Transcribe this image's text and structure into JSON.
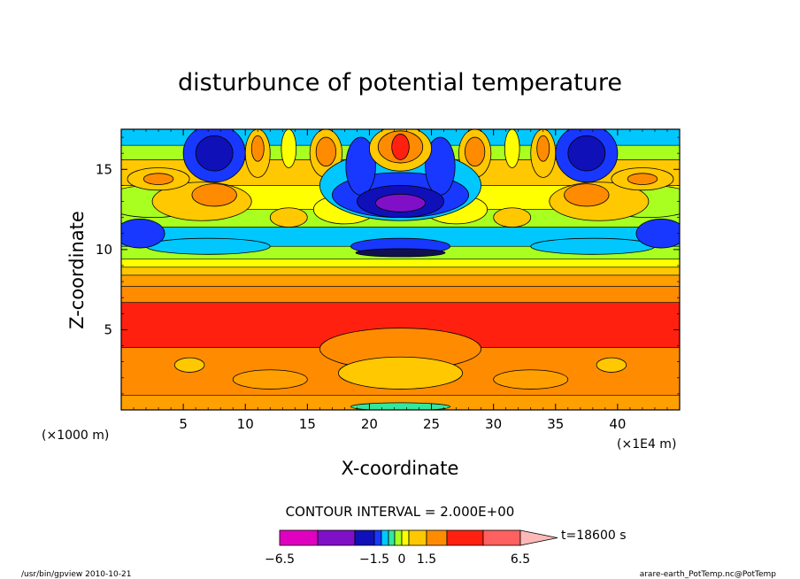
{
  "chart_data": {
    "type": "heatmap",
    "title": "disturbunce of potential temperature",
    "xlabel": "X-coordinate",
    "ylabel": "Z-coordinate",
    "x_unit": "(×1000 m)",
    "x_extra_unit": "(×1E4 m)",
    "xlim": [
      0,
      45
    ],
    "ylim": [
      0,
      17.5
    ],
    "x_ticks": [
      "5",
      "10",
      "15",
      "20",
      "25",
      "30",
      "35",
      "40"
    ],
    "y_ticks": [
      "5",
      "10",
      "15"
    ],
    "contour_interval": "CONTOUR INTERVAL = 2.000E+00",
    "time_label": "t=18600 s",
    "colorbar_ticks": [
      "−6.5",
      "−1.5",
      "0",
      "1.5",
      "6.5"
    ],
    "colorbar_colors": [
      "#e000c0",
      "#8010c8",
      "#1010b8",
      "#1838ff",
      "#00c8ff",
      "#30e8a0",
      "#a8ff20",
      "#ffff00",
      "#ffc800",
      "#ff8c00",
      "#ff2010",
      "#ff6060",
      "#ffb8b8"
    ],
    "bands": [
      {
        "z": [
          0.0,
          0.9
        ],
        "color": "#ffa000"
      },
      {
        "z": [
          0.9,
          3.9
        ],
        "color": "#ff8c00"
      },
      {
        "z": [
          3.9,
          6.7
        ],
        "color": "#ff2010"
      },
      {
        "z": [
          6.7,
          7.7
        ],
        "color": "#ff8c00"
      },
      {
        "z": [
          7.7,
          8.4
        ],
        "color": "#ffa000"
      },
      {
        "z": [
          8.4,
          8.9
        ],
        "color": "#ffc800"
      },
      {
        "z": [
          8.9,
          9.4
        ],
        "color": "#ffff00"
      },
      {
        "z": [
          9.4,
          10.2
        ],
        "color": "#a8ff20"
      },
      {
        "z": [
          10.2,
          11.4
        ],
        "color": "#00c8ff"
      },
      {
        "z": [
          11.4,
          12.5
        ],
        "color": "#a8ff20"
      },
      {
        "z": [
          12.5,
          14.0
        ],
        "color": "#ffff00"
      },
      {
        "z": [
          14.0,
          15.6
        ],
        "color": "#ffc800"
      },
      {
        "z": [
          15.6,
          16.5
        ],
        "color": "#a8ff20"
      },
      {
        "z": [
          16.5,
          17.5
        ],
        "color": "#00c8ff"
      }
    ],
    "blobs": [
      {
        "x": 22.5,
        "z": 3.8,
        "rx": 6.5,
        "rz": 1.3,
        "color": "#ff8c00"
      },
      {
        "x": 22.5,
        "z": 2.3,
        "rx": 5.0,
        "rz": 1.0,
        "color": "#ffc800"
      },
      {
        "x": 5.5,
        "z": 2.8,
        "rx": 1.2,
        "rz": 0.45,
        "color": "#ffc800"
      },
      {
        "x": 39.5,
        "z": 2.8,
        "rx": 1.2,
        "rz": 0.45,
        "color": "#ffc800"
      },
      {
        "x": 12.0,
        "z": 1.9,
        "rx": 3.0,
        "rz": 0.6,
        "color": "#ffa000"
      },
      {
        "x": 33.0,
        "z": 1.9,
        "rx": 3.0,
        "rz": 0.6,
        "color": "#ffa000"
      },
      {
        "x": 22.5,
        "z": 10.2,
        "rx": 4.0,
        "rz": 0.5,
        "color": "#1838ff"
      },
      {
        "x": 22.5,
        "z": 9.8,
        "rx": 3.6,
        "rz": 0.25,
        "color": "#101050"
      },
      {
        "x": 7.0,
        "z": 10.2,
        "rx": 5.0,
        "rz": 0.5,
        "color": "#00c8ff"
      },
      {
        "x": 38.0,
        "z": 10.2,
        "rx": 5.0,
        "rz": 0.5,
        "color": "#00c8ff"
      },
      {
        "x": 1.5,
        "z": 11.0,
        "rx": 2.0,
        "rz": 0.9,
        "color": "#1838ff"
      },
      {
        "x": 43.5,
        "z": 11.0,
        "rx": 2.0,
        "rz": 0.9,
        "color": "#1838ff"
      },
      {
        "x": 2.5,
        "z": 13.0,
        "rx": 4.0,
        "rz": 1.0,
        "color": "#a8ff20"
      },
      {
        "x": 42.5,
        "z": 13.0,
        "rx": 4.0,
        "rz": 1.0,
        "color": "#a8ff20"
      },
      {
        "x": 6.5,
        "z": 13.0,
        "rx": 4.0,
        "rz": 1.2,
        "color": "#ffc800"
      },
      {
        "x": 38.5,
        "z": 13.0,
        "rx": 4.0,
        "rz": 1.2,
        "color": "#ffc800"
      },
      {
        "x": 7.5,
        "z": 13.4,
        "rx": 1.8,
        "rz": 0.7,
        "color": "#ff8c00"
      },
      {
        "x": 37.5,
        "z": 13.4,
        "rx": 1.8,
        "rz": 0.7,
        "color": "#ff8c00"
      },
      {
        "x": 3.0,
        "z": 14.4,
        "rx": 2.5,
        "rz": 0.7,
        "color": "#ffc800"
      },
      {
        "x": 42.0,
        "z": 14.4,
        "rx": 2.5,
        "rz": 0.7,
        "color": "#ffc800"
      },
      {
        "x": 3.0,
        "z": 14.4,
        "rx": 1.2,
        "rz": 0.35,
        "color": "#ff8c00"
      },
      {
        "x": 42.0,
        "z": 14.4,
        "rx": 1.2,
        "rz": 0.35,
        "color": "#ff8c00"
      },
      {
        "x": 13.5,
        "z": 12.0,
        "rx": 1.5,
        "rz": 0.6,
        "color": "#ffc800"
      },
      {
        "x": 31.5,
        "z": 12.0,
        "rx": 1.5,
        "rz": 0.6,
        "color": "#ffc800"
      },
      {
        "x": 18.0,
        "z": 12.5,
        "rx": 2.5,
        "rz": 0.9,
        "color": "#ffff00"
      },
      {
        "x": 27.0,
        "z": 12.5,
        "rx": 2.5,
        "rz": 0.9,
        "color": "#ffff00"
      },
      {
        "x": 7.5,
        "z": 16.0,
        "rx": 2.5,
        "rz": 1.8,
        "color": "#1838ff"
      },
      {
        "x": 37.5,
        "z": 16.0,
        "rx": 2.5,
        "rz": 1.8,
        "color": "#1838ff"
      },
      {
        "x": 7.5,
        "z": 16.0,
        "rx": 1.5,
        "rz": 1.1,
        "color": "#1010b8"
      },
      {
        "x": 37.5,
        "z": 16.0,
        "rx": 1.5,
        "rz": 1.1,
        "color": "#1010b8"
      },
      {
        "x": 11.0,
        "z": 16.0,
        "rx": 1.0,
        "rz": 1.5,
        "color": "#ffc800"
      },
      {
        "x": 34.0,
        "z": 16.0,
        "rx": 1.0,
        "rz": 1.5,
        "color": "#ffc800"
      },
      {
        "x": 11.0,
        "z": 16.3,
        "rx": 0.5,
        "rz": 0.8,
        "color": "#ff8c00"
      },
      {
        "x": 34.0,
        "z": 16.3,
        "rx": 0.5,
        "rz": 0.8,
        "color": "#ff8c00"
      },
      {
        "x": 13.5,
        "z": 16.3,
        "rx": 0.6,
        "rz": 1.2,
        "color": "#ffff00"
      },
      {
        "x": 31.5,
        "z": 16.3,
        "rx": 0.6,
        "rz": 1.2,
        "color": "#ffff00"
      },
      {
        "x": 16.5,
        "z": 16.0,
        "rx": 1.3,
        "rz": 1.5,
        "color": "#ffc800"
      },
      {
        "x": 28.5,
        "z": 16.0,
        "rx": 1.3,
        "rz": 1.5,
        "color": "#ffc800"
      },
      {
        "x": 16.5,
        "z": 16.1,
        "rx": 0.8,
        "rz": 0.9,
        "color": "#ff8c00"
      },
      {
        "x": 28.5,
        "z": 16.1,
        "rx": 0.8,
        "rz": 0.9,
        "color": "#ff8c00"
      },
      {
        "x": 22.5,
        "z": 14.0,
        "rx": 6.5,
        "rz": 2.2,
        "color": "#00c8ff"
      },
      {
        "x": 22.5,
        "z": 13.4,
        "rx": 5.5,
        "rz": 1.4,
        "color": "#1838ff"
      },
      {
        "x": 19.3,
        "z": 15.2,
        "rx": 1.2,
        "rz": 1.8,
        "color": "#1838ff"
      },
      {
        "x": 25.7,
        "z": 15.2,
        "rx": 1.2,
        "rz": 1.8,
        "color": "#1838ff"
      },
      {
        "x": 22.5,
        "z": 13.0,
        "rx": 3.5,
        "rz": 1.0,
        "color": "#1010b8"
      },
      {
        "x": 22.5,
        "z": 12.9,
        "rx": 2.0,
        "rz": 0.55,
        "color": "#8010c8"
      },
      {
        "x": 22.5,
        "z": 16.3,
        "rx": 2.5,
        "rz": 1.4,
        "color": "#ffc800"
      },
      {
        "x": 22.5,
        "z": 16.4,
        "rx": 1.8,
        "rz": 1.0,
        "color": "#ff8c00"
      },
      {
        "x": 22.5,
        "z": 16.4,
        "rx": 0.7,
        "rz": 0.8,
        "color": "#ff2010"
      },
      {
        "x": 22.5,
        "z": 0.2,
        "rx": 4.0,
        "rz": 0.25,
        "color": "#30e8a0"
      }
    ]
  },
  "footer": {
    "left": "/usr/bin/gpview   2010-10-21",
    "right": "arare-earth_PotTemp.nc@PotTemp"
  }
}
